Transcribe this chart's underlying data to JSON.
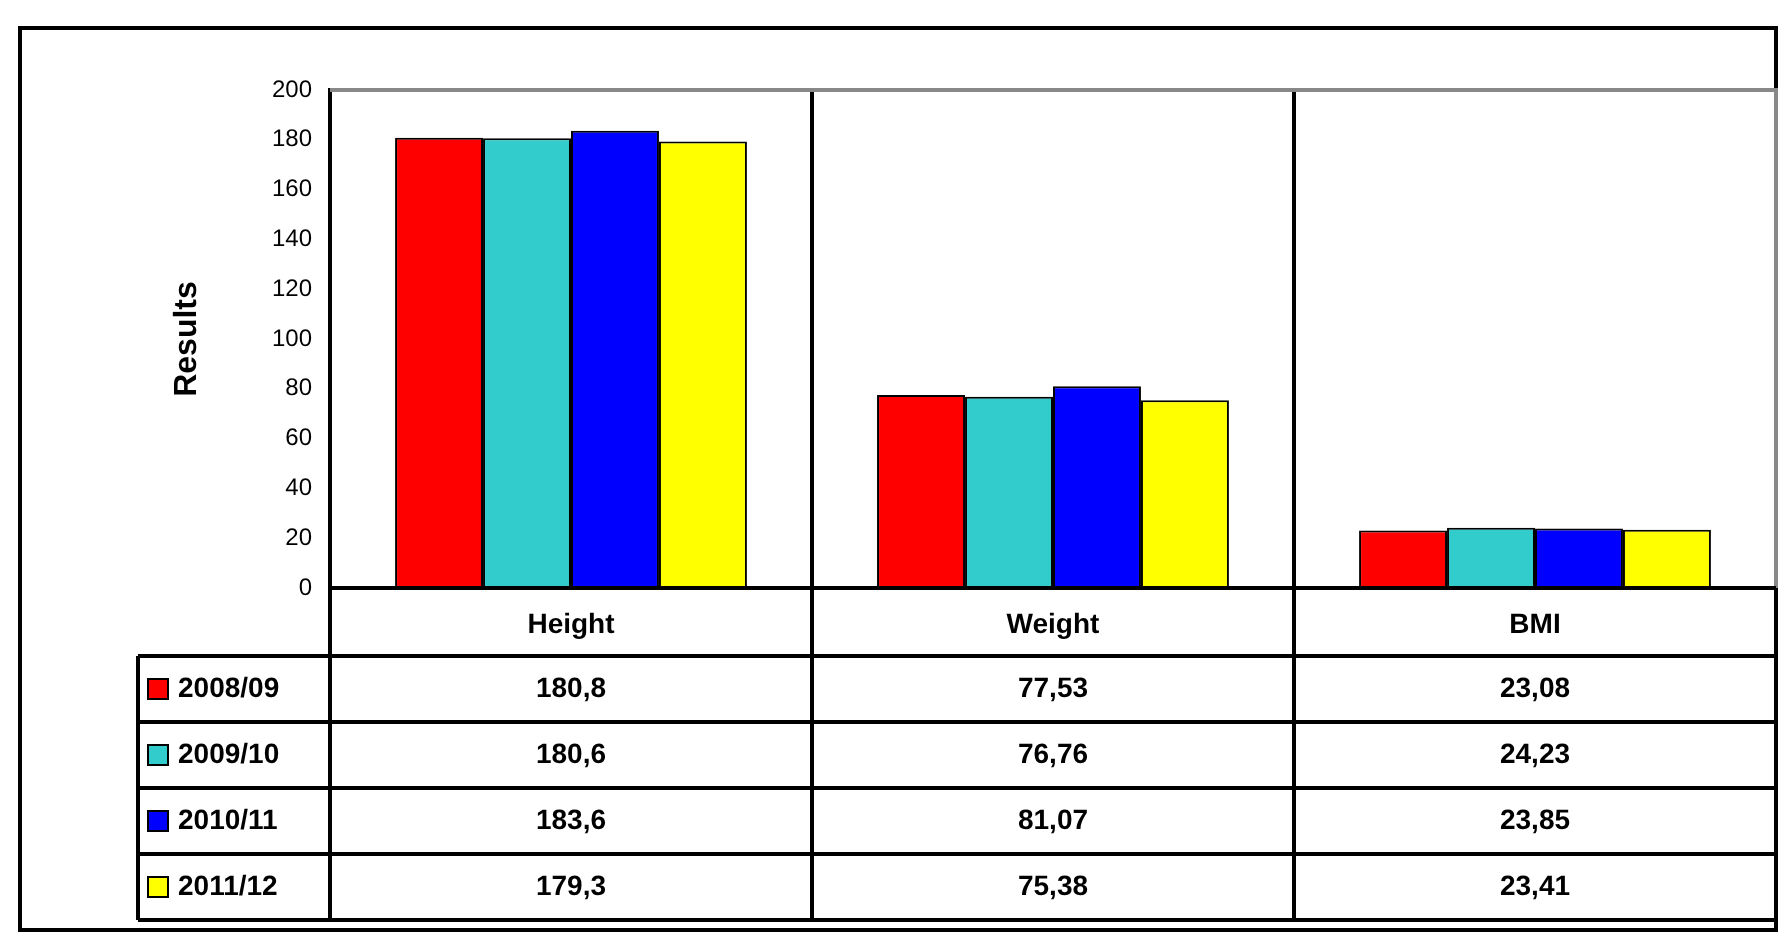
{
  "chart_data": {
    "type": "bar",
    "ylabel": "Results",
    "categories": [
      "Height",
      "Weight",
      "BMI"
    ],
    "series": [
      {
        "name": "2008/09",
        "color": "#ff0000",
        "values": [
          180.8,
          77.53,
          23.08
        ],
        "value_labels": [
          "180,8",
          "77,53",
          "23,08"
        ]
      },
      {
        "name": "2009/10",
        "color": "#33cccc",
        "values": [
          180.6,
          76.76,
          24.23
        ],
        "value_labels": [
          "180,6",
          "76,76",
          "24,23"
        ]
      },
      {
        "name": "2010/11",
        "color": "#0000ff",
        "values": [
          183.6,
          81.07,
          23.85
        ],
        "value_labels": [
          "183,6",
          "81,07",
          "23,85"
        ]
      },
      {
        "name": "2011/12",
        "color": "#ffff00",
        "values": [
          179.3,
          75.38,
          23.41
        ],
        "value_labels": [
          "179,3",
          "75,38",
          "23,41"
        ]
      }
    ],
    "ylim": [
      0,
      200
    ],
    "yticks": [
      0,
      20,
      40,
      60,
      80,
      100,
      120,
      140,
      160,
      180,
      200
    ],
    "grid": "x",
    "legend": "bottom"
  }
}
